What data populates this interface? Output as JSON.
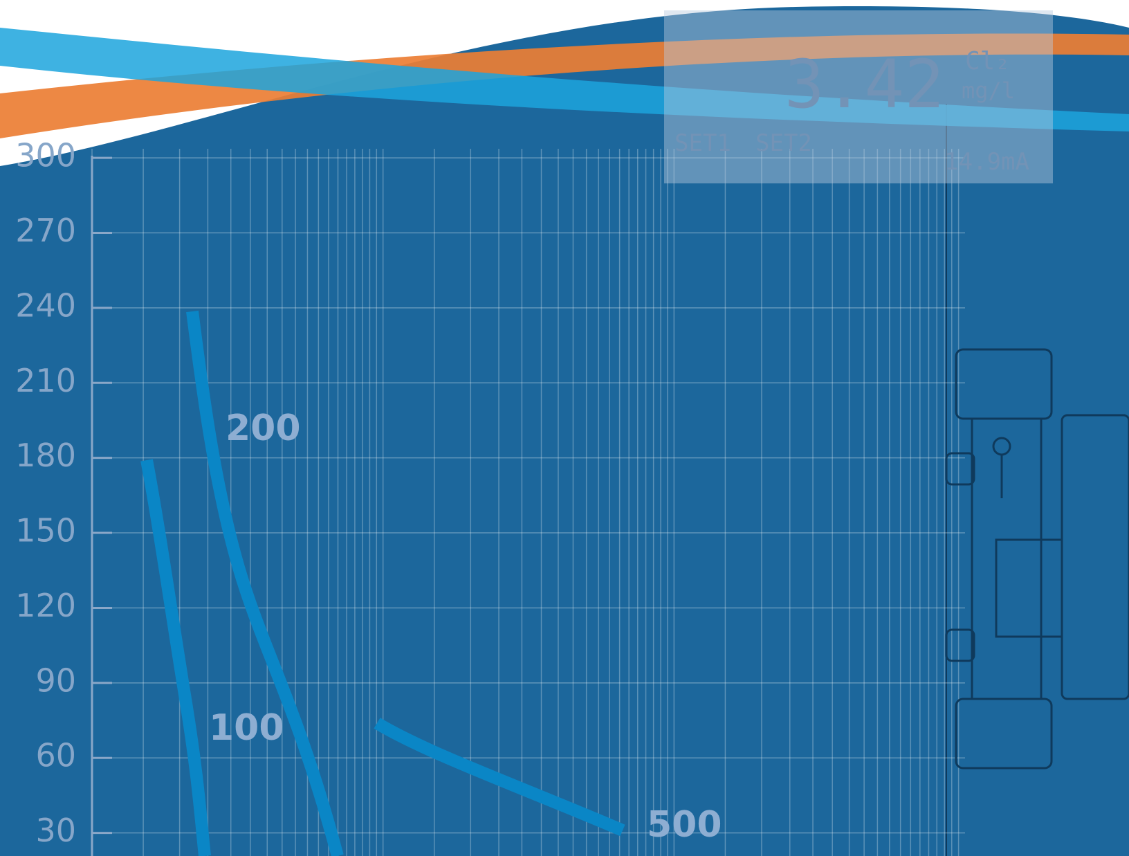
{
  "axis": {
    "ticks": [
      30,
      60,
      90,
      120,
      150,
      180,
      210,
      240,
      270,
      300
    ],
    "lim": [
      0,
      363
    ]
  },
  "curves": [
    {
      "label": "100"
    },
    {
      "label": "200"
    },
    {
      "label": "500"
    }
  ],
  "display": {
    "reading": "3.42",
    "chemical": "Cl₂",
    "unit": "mg/l",
    "set1": "SET1",
    "set2": "SET2",
    "output": "14.9mA"
  }
}
